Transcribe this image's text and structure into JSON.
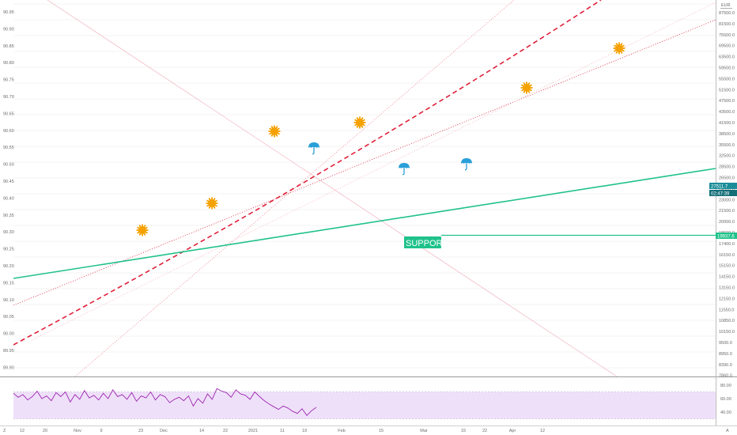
{
  "header": {
    "currency": "EUR"
  },
  "colors": {
    "price": "#1a8d99",
    "projection": "#f4a0b0",
    "ghost": "#f7c9d3",
    "trend_dashed": "#e0203a",
    "trend_dotted": "#e64a5c",
    "support": "#1fc28a",
    "rsi": "#9c27b0",
    "rsi_band": "#efe0fa",
    "sun": "#f5a100",
    "umbrella": "#2a9fd8"
  },
  "chart_data": [
    {
      "type": "line",
      "title": "",
      "y_left_ticks": [
        "90.95",
        "90.90",
        "90.85",
        "90.80",
        "90.75",
        "90.70",
        "90.65",
        "90.60",
        "90.55",
        "90.50",
        "90.45",
        "90.40",
        "90.35",
        "90.30",
        "90.25",
        "90.20",
        "90.15",
        "90.10",
        "90.05",
        "90.00",
        "89.95",
        "89.90"
      ],
      "y_right_ticks": [
        "87500.0",
        "81500.0",
        "75500.0",
        "69500.0",
        "63500.0",
        "59500.0",
        "55500.0",
        "51500.0",
        "47500.0",
        "43500.0",
        "41500.0",
        "38500.0",
        "35500.0",
        "32500.0",
        "28500.0",
        "26500.0",
        "24500.0",
        "23000.0",
        "21500.0",
        "20000.0",
        "18600.0",
        "17400.0",
        "16150.0",
        "15150.0",
        "14150.0",
        "13150.0",
        "12150.0",
        "11550.0",
        "10850.0",
        "10150.0",
        "9500.0",
        "8950.0",
        "8390.0",
        "7860.0"
      ],
      "x_ticks": [
        "12",
        "20",
        "Nov",
        "9",
        "23",
        "Dec",
        "14",
        "22",
        "2021",
        "11",
        "19",
        "Feb",
        "15",
        "Mar",
        "15",
        "22",
        "Apr",
        "12"
      ],
      "y_range": [
        7860,
        95000
      ],
      "y_scale": "log",
      "price_series": {
        "name": "",
        "x": [
          "2020-10-05",
          "2020-10-12",
          "2020-10-19",
          "2020-10-26",
          "2020-11-02",
          "2020-11-09",
          "2020-11-16",
          "2020-11-23",
          "2020-11-30",
          "2020-12-07",
          "2020-12-14",
          "2020-12-21",
          "2020-12-28",
          "2021-01-04",
          "2021-01-08",
          "2021-01-12",
          "2021-01-16",
          "2021-01-20",
          "2021-01-23"
        ],
        "y": [
          9300,
          9700,
          10800,
          11800,
          12600,
          14500,
          16800,
          17900,
          17100,
          16500,
          18700,
          21800,
          24200,
          29500,
          34000,
          30000,
          32000,
          30500,
          27512
        ]
      },
      "projection_series": {
        "name": "",
        "x": [
          "2021-01-23",
          "2021-01-30",
          "2021-02-06",
          "2021-02-12",
          "2021-02-20",
          "2021-02-27",
          "2021-03-06",
          "2021-03-13",
          "2021-03-20",
          "2021-03-27",
          "2021-04-03"
        ],
        "y": [
          28500,
          31000,
          33000,
          35500,
          27000,
          23500,
          24500,
          23000,
          22500,
          25000,
          33500
        ]
      },
      "ghost_series": {
        "name": "",
        "x": [
          "2020-12-20",
          "2021-01-01",
          "2021-01-15",
          "2021-02-01",
          "2021-03-01",
          "2021-04-03",
          "2021-04-17",
          "2021-05-01",
          "2021-05-08",
          "2021-05-15",
          "2021-05-29"
        ],
        "y": [
          15500,
          22000,
          33500,
          30000,
          24000,
          33500,
          38000,
          52000,
          67000,
          46500,
          69000
        ]
      },
      "current_price_label": "27511.7",
      "time_label": "02:47:39",
      "support_value_label": "19937.6",
      "annotations": {
        "support_label": "SUPPORT"
      }
    },
    {
      "type": "line",
      "title": "",
      "indicator": "RSI",
      "y_ticks": [
        "80.00",
        "60.00",
        "40.00"
      ],
      "band": [
        30,
        70
      ],
      "series": [
        {
          "name": "",
          "values": [
            68,
            62,
            66,
            58,
            63,
            71,
            60,
            64,
            57,
            69,
            63,
            70,
            55,
            66,
            59,
            72,
            61,
            65,
            58,
            68,
            60,
            73,
            63,
            66,
            59,
            69,
            56,
            64,
            61,
            70,
            58,
            66,
            63,
            54,
            59,
            62,
            57,
            64,
            49,
            60,
            53,
            67,
            59,
            75,
            71,
            69,
            62,
            73,
            67,
            65,
            59,
            70,
            63,
            57,
            52,
            48,
            44,
            49,
            46,
            41,
            38,
            45,
            35,
            42,
            47
          ]
        }
      ]
    }
  ]
}
